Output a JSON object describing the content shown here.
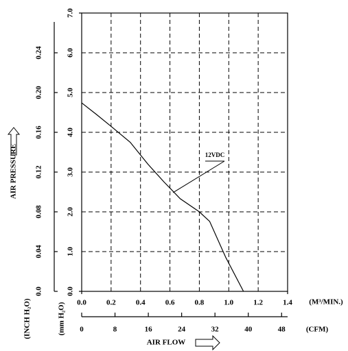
{
  "chart_data": {
    "type": "line",
    "title_y": "AIR PRESSURE",
    "title_x": "AIR FLOW",
    "xlabel": "(M³/MIN.)",
    "x2label": "(CFM)",
    "ylabel": "(mm H₂O)",
    "y2label": "(INCH H₂O)",
    "xlim": [
      0,
      1.4
    ],
    "xticks": [
      {
        "value": 0,
        "label": "0.0"
      },
      0.2,
      0.4,
      0.6,
      0.8,
      {
        "value": 1,
        "label": "1.0"
      },
      1.2,
      1.4
    ],
    "x2lim": [
      0,
      49.44
    ],
    "x2ticks": [
      0,
      8,
      16,
      24,
      32,
      40,
      48
    ],
    "ylim": [
      0,
      7
    ],
    "yticks": [
      {
        "value": 0,
        "label": "0.0"
      },
      {
        "value": 1,
        "label": "1.0"
      },
      {
        "value": 2,
        "label": "2.0"
      },
      {
        "value": 3,
        "label": "3.0"
      },
      {
        "value": 4,
        "label": "4.0"
      },
      {
        "value": 5,
        "label": "5.0"
      },
      {
        "value": 6,
        "label": "6.0"
      },
      {
        "value": 7,
        "label": "7.0"
      }
    ],
    "y2lim": [
      0,
      0.28
    ],
    "y2ticks": [
      {
        "value": 0,
        "label": "0.0"
      },
      0.04,
      0.08,
      0.12,
      0.16,
      {
        "value": 0.2,
        "label": "0.20"
      },
      0.24
    ],
    "grid": true,
    "x": [
      0,
      0.1,
      0.2,
      0.33,
      0.45,
      0.56,
      0.67,
      0.8,
      0.87,
      0.98,
      1.1
    ],
    "series": [
      {
        "name": "12VDC",
        "color": "#000000",
        "values": [
          4.74,
          4.45,
          4.15,
          3.75,
          3.2,
          2.75,
          2.33,
          2.0,
          1.76,
          0.85,
          0
        ]
      }
    ]
  }
}
